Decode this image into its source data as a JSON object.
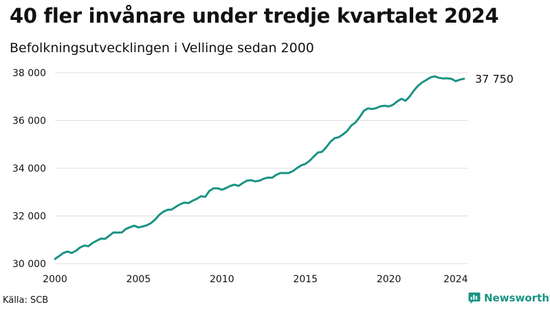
{
  "header": {
    "title": "40 fler invånare under tredje kvartalet 2024",
    "subtitle": "Befolkningsutvecklingen i Vellinge sedan 2000"
  },
  "footer": {
    "source": "Källa: SCB",
    "brand": "Newsworthy"
  },
  "colors": {
    "line": "#1a9383",
    "grid": "#dddddd",
    "text": "#111111"
  },
  "chart_data": {
    "type": "line",
    "title": "40 fler invånare under tredje kvartalet 2024",
    "subtitle": "Befolkningsutvecklingen i Vellinge sedan 2000",
    "xlabel": "",
    "ylabel": "",
    "xlim": [
      2000,
      2024.75
    ],
    "ylim": [
      30000,
      38000
    ],
    "x_ticks": [
      2000,
      2005,
      2010,
      2015,
      2020,
      2024
    ],
    "x_tick_labels": [
      "2000",
      "2005",
      "2010",
      "2015",
      "2020",
      "2024"
    ],
    "y_ticks": [
      30000,
      32000,
      34000,
      36000,
      38000
    ],
    "y_tick_labels": [
      "30 000",
      "32 000",
      "34 000",
      "36 000",
      "38 000"
    ],
    "grid": "horizontal",
    "end_label": "37 750",
    "series": [
      {
        "name": "",
        "x": [
          2000,
          2000.25,
          2000.5,
          2000.75,
          2001,
          2001.25,
          2001.5,
          2001.75,
          2002,
          2002.25,
          2002.5,
          2002.75,
          2003,
          2003.25,
          2003.5,
          2003.75,
          2004,
          2004.25,
          2004.5,
          2004.75,
          2005,
          2005.25,
          2005.5,
          2005.75,
          2006,
          2006.25,
          2006.5,
          2006.75,
          2007,
          2007.25,
          2007.5,
          2007.75,
          2008,
          2008.25,
          2008.5,
          2008.75,
          2009,
          2009.25,
          2009.5,
          2009.75,
          2010,
          2010.25,
          2010.5,
          2010.75,
          2011,
          2011.25,
          2011.5,
          2011.75,
          2012,
          2012.25,
          2012.5,
          2012.75,
          2013,
          2013.25,
          2013.5,
          2013.75,
          2014,
          2014.25,
          2014.5,
          2014.75,
          2015,
          2015.25,
          2015.5,
          2015.75,
          2016,
          2016.25,
          2016.5,
          2016.75,
          2017,
          2017.25,
          2017.5,
          2017.75,
          2018,
          2018.25,
          2018.5,
          2018.75,
          2019,
          2019.25,
          2019.5,
          2019.75,
          2020,
          2020.25,
          2020.5,
          2020.75,
          2021,
          2021.25,
          2021.5,
          2021.75,
          2022,
          2022.25,
          2022.5,
          2022.75,
          2023,
          2023.25,
          2023.5,
          2023.75,
          2024,
          2024.25,
          2024.5
        ],
        "values": [
          30200,
          30320,
          30450,
          30510,
          30450,
          30540,
          30680,
          30760,
          30730,
          30870,
          30960,
          31050,
          31040,
          31170,
          31310,
          31300,
          31310,
          31460,
          31530,
          31590,
          31520,
          31560,
          31610,
          31700,
          31850,
          32050,
          32180,
          32260,
          32270,
          32390,
          32490,
          32560,
          32540,
          32640,
          32720,
          32830,
          32800,
          33050,
          33160,
          33160,
          33100,
          33170,
          33260,
          33310,
          33260,
          33380,
          33480,
          33500,
          33450,
          33480,
          33560,
          33610,
          33600,
          33720,
          33800,
          33800,
          33800,
          33880,
          34010,
          34120,
          34180,
          34310,
          34490,
          34660,
          34690,
          34880,
          35110,
          35260,
          35300,
          35420,
          35560,
          35790,
          35920,
          36140,
          36410,
          36510,
          36480,
          36520,
          36600,
          36620,
          36590,
          36660,
          36800,
          36910,
          36830,
          37010,
          37260,
          37460,
          37600,
          37700,
          37810,
          37850,
          37790,
          37760,
          37770,
          37750,
          37650,
          37710,
          37750
        ]
      }
    ]
  }
}
